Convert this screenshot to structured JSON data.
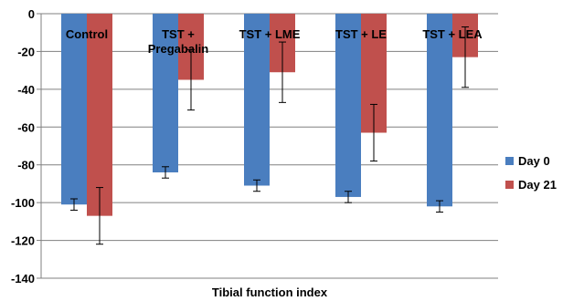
{
  "chart_data": {
    "type": "bar",
    "xlabel": "Tibial function index",
    "ylim": [
      -140,
      0
    ],
    "yticks": [
      0,
      -20,
      -40,
      -60,
      -80,
      -100,
      -120,
      -140
    ],
    "grid": true,
    "legend_position": "right",
    "categories": [
      {
        "lines": [
          "Control"
        ]
      },
      {
        "lines": [
          "TST +",
          "Pregabalin"
        ]
      },
      {
        "lines": [
          "TST + LME"
        ]
      },
      {
        "lines": [
          "TST + LE"
        ]
      },
      {
        "lines": [
          "TST + LEA"
        ]
      }
    ],
    "series": [
      {
        "name": "Day 0",
        "color": "#4a7ebf",
        "values": [
          -101,
          -84,
          -91,
          -97,
          -102
        ],
        "errors": [
          3,
          3,
          3,
          3,
          3
        ]
      },
      {
        "name": "Day 21",
        "color": "#c0504d",
        "values": [
          -107,
          -35,
          -31,
          -63,
          -23
        ],
        "errors": [
          15,
          16,
          16,
          15,
          16
        ]
      }
    ]
  }
}
